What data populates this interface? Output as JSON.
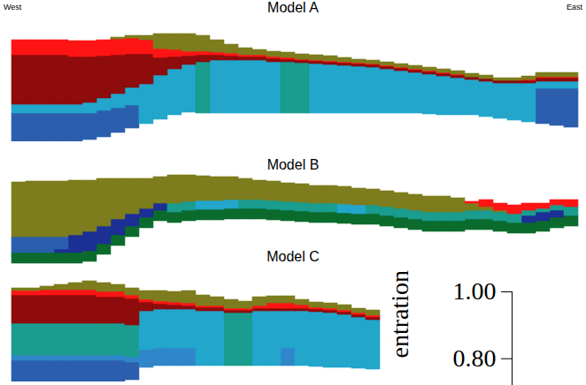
{
  "chart_data": [
    {
      "type": "bar",
      "title": "Model A",
      "stacked": true,
      "tick_labels": false,
      "annotations": [
        "West",
        "East"
      ],
      "xlim": [
        0,
        39
      ],
      "ylim": [
        0,
        140
      ],
      "x": [
        0,
        1,
        2,
        3,
        4,
        5,
        6,
        7,
        8,
        9,
        10,
        11,
        12,
        13,
        14,
        15,
        16,
        17,
        18,
        19,
        20,
        21,
        22,
        23,
        24,
        25,
        26,
        27,
        28,
        29,
        30,
        31,
        32,
        33,
        34,
        35,
        36,
        37,
        38,
        39
      ],
      "base": [
        0,
        0,
        0,
        0,
        0,
        2,
        5,
        10,
        15,
        20,
        25,
        30,
        33,
        32,
        32,
        32,
        32,
        32,
        32,
        32,
        32,
        32,
        32,
        32,
        32,
        32,
        32,
        32,
        32,
        31,
        30,
        30,
        30,
        28,
        26,
        24,
        22,
        20,
        18,
        16
      ],
      "series": [
        {
          "color": "#2b5fae",
          "values": [
            32,
            32,
            32,
            32,
            32,
            30,
            30,
            28,
            26,
            0,
            0,
            0,
            0,
            0,
            0,
            0,
            0,
            0,
            0,
            0,
            0,
            0,
            0,
            0,
            0,
            0,
            0,
            0,
            0,
            0,
            0,
            0,
            0,
            0,
            0,
            0,
            0,
            40,
            42,
            44
          ]
        },
        {
          "color": "#22a6cc",
          "values": [
            10,
            10,
            10,
            10,
            10,
            12,
            14,
            16,
            20,
            45,
            50,
            52,
            54,
            0,
            60,
            60,
            60,
            60,
            58,
            0,
            0,
            56,
            55,
            54,
            53,
            52,
            50,
            48,
            46,
            45,
            44,
            42,
            40,
            40,
            40,
            42,
            44,
            8,
            8,
            8
          ]
        },
        {
          "color": "#1a9c8e",
          "values": [
            0,
            0,
            0,
            0,
            0,
            0,
            0,
            0,
            0,
            0,
            0,
            0,
            0,
            58,
            0,
            0,
            0,
            0,
            0,
            58,
            57,
            0,
            0,
            0,
            0,
            0,
            0,
            0,
            0,
            0,
            0,
            0,
            0,
            0,
            0,
            0,
            0,
            0,
            0,
            0
          ]
        },
        {
          "color": "#8e0c0c",
          "values": [
            56,
            56,
            56,
            56,
            54,
            52,
            48,
            44,
            38,
            34,
            20,
            14,
            10,
            8,
            6,
            5,
            4,
            4,
            4,
            3,
            3,
            3,
            3,
            3,
            3,
            3,
            3,
            3,
            3,
            3,
            3,
            3,
            3,
            3,
            3,
            3,
            3,
            4,
            4,
            4
          ]
        },
        {
          "color": "#ff1414",
          "values": [
            17,
            17,
            17,
            17,
            18,
            18,
            18,
            18,
            18,
            16,
            10,
            8,
            5,
            4,
            3,
            3,
            2,
            2,
            2,
            2,
            1,
            1,
            1,
            1,
            1,
            1,
            1,
            1,
            1,
            1,
            1,
            1,
            0,
            0,
            0,
            0,
            1,
            1,
            1,
            1
          ]
        },
        {
          "color": "#7d7d1e",
          "values": [
            0,
            0,
            0,
            0,
            0,
            0,
            0,
            2,
            3,
            5,
            17,
            18,
            20,
            18,
            14,
            10,
            8,
            6,
            6,
            6,
            6,
            6,
            6,
            5,
            4,
            4,
            4,
            4,
            4,
            4,
            4,
            4,
            4,
            4,
            3,
            3,
            4,
            5,
            5,
            5
          ]
        }
      ]
    },
    {
      "type": "bar",
      "title": "Model B",
      "stacked": true,
      "tick_labels": false,
      "xlim": [
        0,
        39
      ],
      "ylim": [
        0,
        120
      ],
      "x": [
        0,
        1,
        2,
        3,
        4,
        5,
        6,
        7,
        8,
        9,
        10,
        11,
        12,
        13,
        14,
        15,
        16,
        17,
        18,
        19,
        20,
        21,
        22,
        23,
        24,
        25,
        26,
        27,
        28,
        29,
        30,
        31,
        32,
        33,
        34,
        35,
        36,
        37,
        38,
        39
      ],
      "base": [
        2,
        2,
        2,
        2,
        2,
        4,
        12,
        22,
        32,
        42,
        50,
        48,
        50,
        51,
        51,
        52,
        52,
        52,
        51,
        50,
        49,
        48,
        48,
        47,
        46,
        46,
        44,
        42,
        40,
        38,
        38,
        38,
        40,
        40,
        38,
        36,
        36,
        38,
        42,
        44
      ],
      "series": [
        {
          "color": "#0a6b2d",
          "values": [
            12,
            12,
            12,
            12,
            12,
            12,
            12,
            12,
            12,
            12,
            12,
            12,
            12,
            12,
            12,
            12,
            12,
            12,
            12,
            12,
            12,
            12,
            12,
            12,
            12,
            12,
            12,
            12,
            12,
            12,
            12,
            12,
            12,
            12,
            12,
            12,
            12,
            12,
            12,
            12
          ]
        },
        {
          "color": "#1c2f94",
          "values": [
            0,
            0,
            0,
            4,
            20,
            22,
            20,
            18,
            14,
            10,
            8,
            0,
            0,
            0,
            0,
            0,
            0,
            0,
            0,
            0,
            0,
            0,
            0,
            0,
            0,
            0,
            0,
            0,
            0,
            0,
            0,
            0,
            0,
            0,
            0,
            0,
            8,
            10,
            8,
            0
          ]
        },
        {
          "color": "#2b5fae",
          "values": [
            18,
            18,
            18,
            14,
            0,
            0,
            0,
            0,
            0,
            0,
            0,
            0,
            0,
            0,
            0,
            0,
            0,
            0,
            0,
            0,
            0,
            0,
            0,
            0,
            0,
            0,
            0,
            0,
            0,
            0,
            0,
            0,
            0,
            0,
            0,
            0,
            0,
            0,
            0,
            0
          ]
        },
        {
          "color": "#1a9c8e",
          "values": [
            0,
            0,
            0,
            0,
            0,
            0,
            0,
            0,
            0,
            0,
            0,
            10,
            10,
            0,
            0,
            0,
            10,
            10,
            10,
            10,
            10,
            10,
            10,
            0,
            0,
            10,
            10,
            10,
            10,
            10,
            10,
            10,
            10,
            10,
            10,
            10,
            6,
            4,
            6,
            10
          ]
        },
        {
          "color": "#22a6cc",
          "values": [
            0,
            0,
            0,
            0,
            0,
            0,
            0,
            0,
            0,
            0,
            0,
            0,
            0,
            10,
            10,
            10,
            0,
            0,
            0,
            0,
            0,
            0,
            0,
            10,
            10,
            0,
            0,
            0,
            0,
            0,
            0,
            0,
            0,
            0,
            0,
            0,
            0,
            0,
            0,
            0
          ]
        },
        {
          "color": "#7d7d1e",
          "values": [
            62,
            63,
            63,
            63,
            62,
            58,
            54,
            46,
            40,
            34,
            30,
            32,
            30,
            28,
            27,
            26,
            24,
            22,
            22,
            21,
            21,
            20,
            20,
            20,
            19,
            18,
            18,
            18,
            18,
            18,
            18,
            16,
            8,
            4,
            2,
            0,
            0,
            0,
            0,
            0
          ]
        },
        {
          "color": "#ff1414",
          "values": [
            0,
            0,
            0,
            0,
            0,
            0,
            0,
            0,
            0,
            0,
            0,
            0,
            0,
            0,
            0,
            0,
            0,
            0,
            0,
            0,
            0,
            0,
            0,
            0,
            0,
            0,
            0,
            0,
            0,
            0,
            0,
            0,
            2,
            8,
            8,
            10,
            8,
            6,
            6,
            8
          ]
        }
      ]
    },
    {
      "type": "bar",
      "title": "Model C",
      "stacked": true,
      "tick_labels": false,
      "xlim": [
        0,
        39
      ],
      "ylim": [
        0,
        120
      ],
      "x": [
        0,
        1,
        2,
        3,
        4,
        5,
        6,
        7,
        8,
        9,
        10,
        11,
        12,
        13,
        14,
        15,
        16,
        17,
        18,
        19,
        20,
        21,
        22,
        23,
        24,
        25
      ],
      "base": [
        0,
        0,
        0,
        0,
        0,
        0,
        0,
        0,
        2,
        16,
        18,
        18,
        18,
        18,
        18,
        18,
        18,
        18,
        18,
        18,
        18,
        17,
        16,
        16,
        15,
        14
      ],
      "series": [
        {
          "color": "#2b5fae",
          "values": [
            24,
            24,
            24,
            24,
            24,
            24,
            24,
            24,
            20,
            0,
            0,
            0,
            0,
            0,
            0,
            0,
            0,
            0,
            0,
            0,
            0,
            0,
            0,
            0,
            0,
            0
          ]
        },
        {
          "color": "#2f86c8",
          "values": [
            6,
            6,
            6,
            6,
            6,
            6,
            6,
            6,
            6,
            20,
            20,
            20,
            20,
            0,
            0,
            0,
            0,
            0,
            0,
            20,
            0,
            0,
            0,
            0,
            0,
            0
          ]
        },
        {
          "color": "#1a9c8e",
          "values": [
            36,
            36,
            36,
            36,
            36,
            36,
            36,
            36,
            36,
            0,
            0,
            0,
            0,
            0,
            0,
            60,
            60,
            0,
            0,
            0,
            0,
            0,
            0,
            0,
            0,
            0
          ]
        },
        {
          "color": "#22a6cc",
          "values": [
            0,
            0,
            0,
            0,
            0,
            0,
            0,
            0,
            0,
            44,
            44,
            44,
            44,
            62,
            62,
            0,
            0,
            62,
            62,
            42,
            62,
            62,
            62,
            60,
            58,
            56
          ]
        },
        {
          "color": "#8e0c0c",
          "values": [
            32,
            32,
            32,
            32,
            32,
            32,
            30,
            30,
            30,
            10,
            6,
            5,
            4,
            4,
            4,
            3,
            3,
            3,
            3,
            3,
            3,
            3,
            3,
            3,
            3,
            3
          ]
        },
        {
          "color": "#ff1414",
          "values": [
            5,
            5,
            6,
            6,
            6,
            6,
            6,
            6,
            4,
            3,
            3,
            3,
            3,
            2,
            2,
            2,
            2,
            3,
            6,
            6,
            4,
            2,
            2,
            2,
            2,
            2
          ]
        },
        {
          "color": "#7d7d1e",
          "values": [
            3,
            3,
            4,
            6,
            8,
            10,
            10,
            8,
            8,
            10,
            12,
            12,
            14,
            12,
            10,
            10,
            8,
            10,
            8,
            8,
            6,
            6,
            6,
            6,
            5,
            6
          ]
        }
      ]
    },
    {
      "type": "colorbar",
      "label": "entration",
      "ylim": [
        0.72,
        1
      ],
      "yticks": [
        1,
        0.8
      ]
    }
  ]
}
